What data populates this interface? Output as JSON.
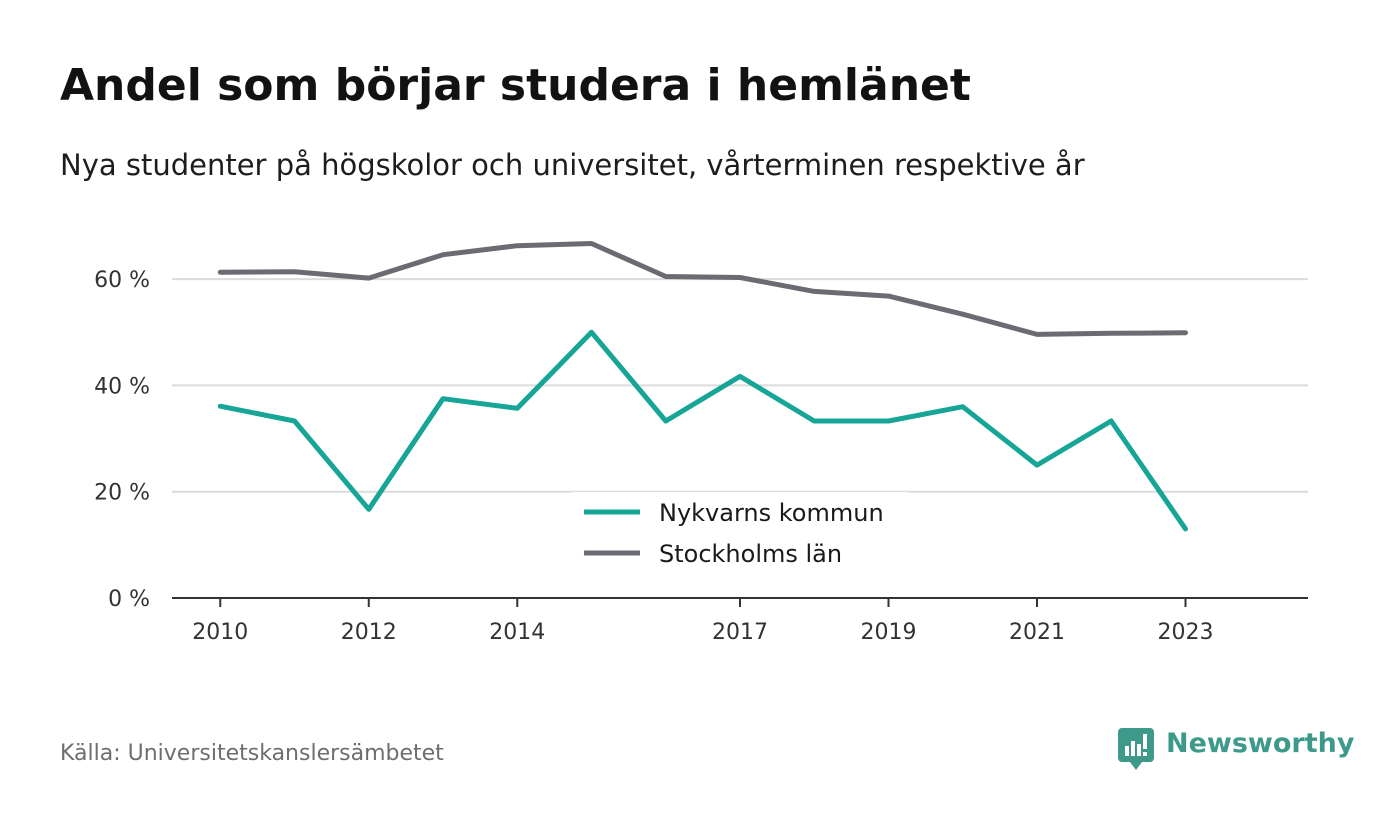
{
  "header": {
    "title": "Andel som börjar studera i hemlänet",
    "subtitle": "Nya studenter på högskolor och universitet, vårterminen respektive år"
  },
  "footer": {
    "source": "Källa: Universitetskanslersämbetet",
    "brand_name": "Newsworthy",
    "brand_icon": "newsworthy-chart-bubble-icon"
  },
  "colors": {
    "nykvarn": "#16a596",
    "stockholm": "#6b6b73",
    "grid": "#dcdcdc",
    "axis": "#333333",
    "brand": "#3d9a8b"
  },
  "chart_data": {
    "type": "line",
    "x": [
      2010,
      2011,
      2012,
      2013,
      2014,
      2015,
      2016,
      2017,
      2018,
      2019,
      2020,
      2021,
      2022,
      2023
    ],
    "x_tick_labels": [
      "2010",
      "2012",
      "2014",
      "2017",
      "2019",
      "2021",
      "2023"
    ],
    "y_ticks": [
      0,
      20,
      40,
      60
    ],
    "y_tick_labels": [
      "0 %",
      "20 %",
      "40 %",
      "60 %"
    ],
    "ylim": [
      0,
      70
    ],
    "xlim": [
      2009.35,
      2024.65
    ],
    "grid": true,
    "legend_position": "bottom-center",
    "series": [
      {
        "name": "Nykvarns kommun",
        "color": "#16a596",
        "values": [
          36.1,
          33.3,
          16.7,
          37.5,
          35.7,
          50.0,
          33.3,
          41.7,
          33.3,
          33.3,
          36.0,
          25.0,
          33.3,
          13.0
        ]
      },
      {
        "name": "Stockholms län",
        "color": "#6b6b73",
        "values": [
          61.3,
          61.4,
          60.2,
          64.6,
          66.3,
          66.7,
          60.5,
          60.3,
          57.7,
          56.8,
          53.4,
          49.6,
          49.8,
          49.9
        ]
      }
    ]
  }
}
